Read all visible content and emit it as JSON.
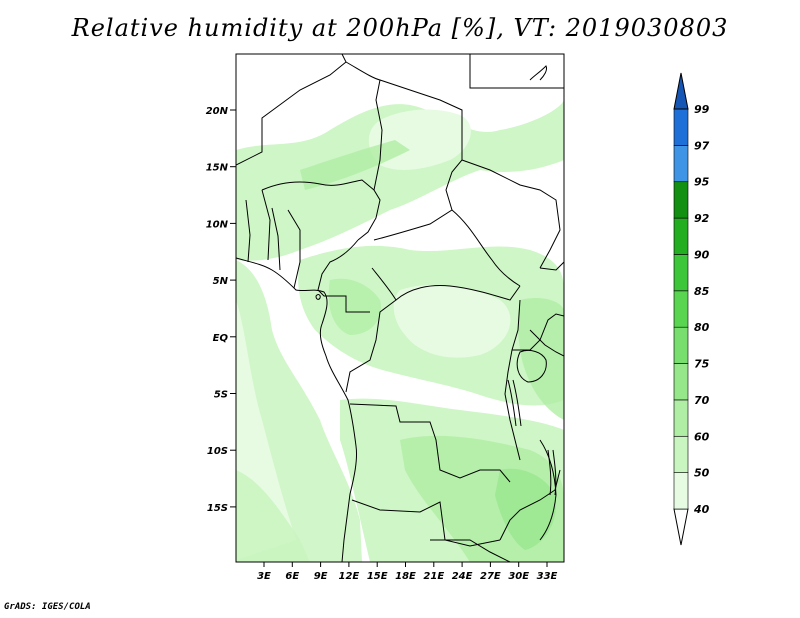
{
  "title": "Relative humidity at 200hPa [%], VT: 2019030803",
  "credit": "GrADS: IGES/COLA",
  "map": {
    "lat_ticks": [
      "20N",
      "15N",
      "10N",
      "5N",
      "EQ",
      "5S",
      "10S",
      "15S"
    ],
    "lon_ticks": [
      "3E",
      "6E",
      "9E",
      "12E",
      "15E",
      "18E",
      "21E",
      "24E",
      "27E",
      "30E",
      "33E"
    ]
  },
  "legend": {
    "levels": [
      "40",
      "50",
      "60",
      "70",
      "75",
      "80",
      "85",
      "90",
      "92",
      "95",
      "97",
      "99"
    ],
    "colors": [
      "#ffffff",
      "#e6fbe2",
      "#c9f5c0",
      "#b0eda5",
      "#96e68a",
      "#78de6e",
      "#5ad551",
      "#3ec63a",
      "#23ad20",
      "#138f12",
      "#3f94e6",
      "#1f6fd9",
      "#1556b4"
    ]
  }
}
